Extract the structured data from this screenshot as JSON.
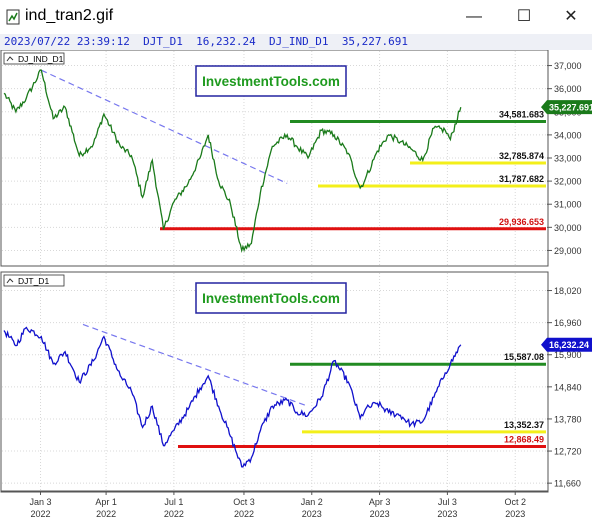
{
  "window": {
    "title": "ind_tran2.gif",
    "minimize": "—",
    "maximize": "☐",
    "close": "✕"
  },
  "info_bar": {
    "timestamp": "2023/07/22 23:39:12",
    "djt_label": "DJT_D1",
    "djt_value": "16,232.24",
    "dji_label": "DJ_IND_D1",
    "dji_value": "35,227.691"
  },
  "brand_text": "InvestmentTools.com",
  "colors": {
    "dji_line": "#1a7a1a",
    "djt_line": "#1010cc",
    "resistance": "#228b22",
    "support": "#f3ef1a",
    "bottom": "#e01010",
    "trend": "#7777ee"
  },
  "x_axis": {
    "labels": [
      {
        "month": "Jan 3",
        "year": "2022"
      },
      {
        "month": "Apr 1",
        "year": "2022"
      },
      {
        "month": "Jul 1",
        "year": "2022"
      },
      {
        "month": "Oct 3",
        "year": "2022"
      },
      {
        "month": "Jan 2",
        "year": "2023"
      },
      {
        "month": "Apr 3",
        "year": "2023"
      },
      {
        "month": "Jul 3",
        "year": "2023"
      },
      {
        "month": "Oct 2",
        "year": "2023"
      }
    ]
  },
  "chart_data": [
    {
      "type": "line",
      "title": "DJ_IND_D1",
      "ylim": [
        28500,
        37500
      ],
      "y_ticks": [
        "29,000",
        "30,000",
        "31,000",
        "32,000",
        "33,000",
        "34,000",
        "35,000",
        "36,000",
        "37,000"
      ],
      "current_value": "35,227.691",
      "levels": [
        {
          "label": "34,581.683",
          "value": 34581.683,
          "color": "resistance"
        },
        {
          "label": "32,785.874",
          "value": 32785.874,
          "color": "support"
        },
        {
          "label": "31,787.682",
          "value": 31787.682,
          "color": "support"
        },
        {
          "label": "29,936.653",
          "value": 29936.653,
          "color": "bottom"
        }
      ],
      "series": [
        {
          "x": [
            "2021-11-15",
            "2021-12-01",
            "2021-12-15",
            "2022-01-04",
            "2022-01-20",
            "2022-02-05",
            "2022-02-24",
            "2022-03-15",
            "2022-03-29",
            "2022-04-20",
            "2022-05-05",
            "2022-05-20",
            "2022-06-02",
            "2022-06-17",
            "2022-07-01",
            "2022-07-20",
            "2022-08-05",
            "2022-08-16",
            "2022-08-30",
            "2022-09-15",
            "2022-09-30",
            "2022-10-13",
            "2022-10-25",
            "2022-11-10",
            "2022-11-30",
            "2022-12-13",
            "2022-12-28",
            "2023-01-15",
            "2023-02-01",
            "2023-02-20",
            "2023-03-08",
            "2023-03-15",
            "2023-03-31",
            "2023-04-15",
            "2023-05-01",
            "2023-05-15",
            "2023-05-31",
            "2023-06-15",
            "2023-06-30",
            "2023-07-07",
            "2023-07-21"
          ],
          "values": [
            35800,
            35000,
            35600,
            36800,
            34700,
            35200,
            33100,
            33600,
            34900,
            33500,
            33100,
            31300,
            32900,
            29900,
            31100,
            31900,
            33000,
            34000,
            32000,
            31000,
            29000,
            29300,
            31500,
            33500,
            34000,
            33500,
            33000,
            34200,
            34000,
            33200,
            31700,
            32100,
            33300,
            34000,
            33700,
            33400,
            32900,
            34300,
            34200,
            33800,
            35200
          ]
        }
      ]
    },
    {
      "type": "line",
      "title": "DJT_D1",
      "ylim": [
        11500,
        18500
      ],
      "y_ticks": [
        "11,660",
        "12,720",
        "13,780",
        "14,840",
        "15,900",
        "16,960",
        "18,020"
      ],
      "current_value": "16,232.24",
      "levels": [
        {
          "label": "15,587.08",
          "value": 15587.08,
          "color": "resistance"
        },
        {
          "label": "13,352.37",
          "value": 13352.37,
          "color": "support"
        },
        {
          "label": "12,868.49",
          "value": 12868.49,
          "color": "bottom"
        }
      ],
      "series": [
        {
          "x": [
            "2021-11-15",
            "2021-12-01",
            "2021-12-15",
            "2022-01-04",
            "2022-01-20",
            "2022-02-05",
            "2022-02-24",
            "2022-03-15",
            "2022-03-29",
            "2022-04-20",
            "2022-05-05",
            "2022-05-20",
            "2022-06-02",
            "2022-06-17",
            "2022-07-01",
            "2022-07-20",
            "2022-08-05",
            "2022-08-16",
            "2022-08-30",
            "2022-09-15",
            "2022-09-30",
            "2022-10-13",
            "2022-10-25",
            "2022-11-10",
            "2022-11-30",
            "2022-12-13",
            "2022-12-28",
            "2023-01-15",
            "2023-02-01",
            "2023-02-20",
            "2023-03-08",
            "2023-03-15",
            "2023-03-31",
            "2023-04-15",
            "2023-05-01",
            "2023-05-15",
            "2023-05-31",
            "2023-06-15",
            "2023-06-30",
            "2023-07-07",
            "2023-07-21"
          ],
          "values": [
            16700,
            16200,
            16800,
            16500,
            15600,
            16000,
            15000,
            15700,
            16500,
            15200,
            14700,
            13500,
            14200,
            12900,
            13400,
            14100,
            14800,
            15200,
            14200,
            13200,
            12200,
            12500,
            13400,
            14200,
            14400,
            14000,
            13900,
            14500,
            15700,
            15000,
            13800,
            14100,
            14300,
            14000,
            13900,
            13600,
            13700,
            14500,
            15300,
            15600,
            16232
          ]
        }
      ]
    }
  ]
}
